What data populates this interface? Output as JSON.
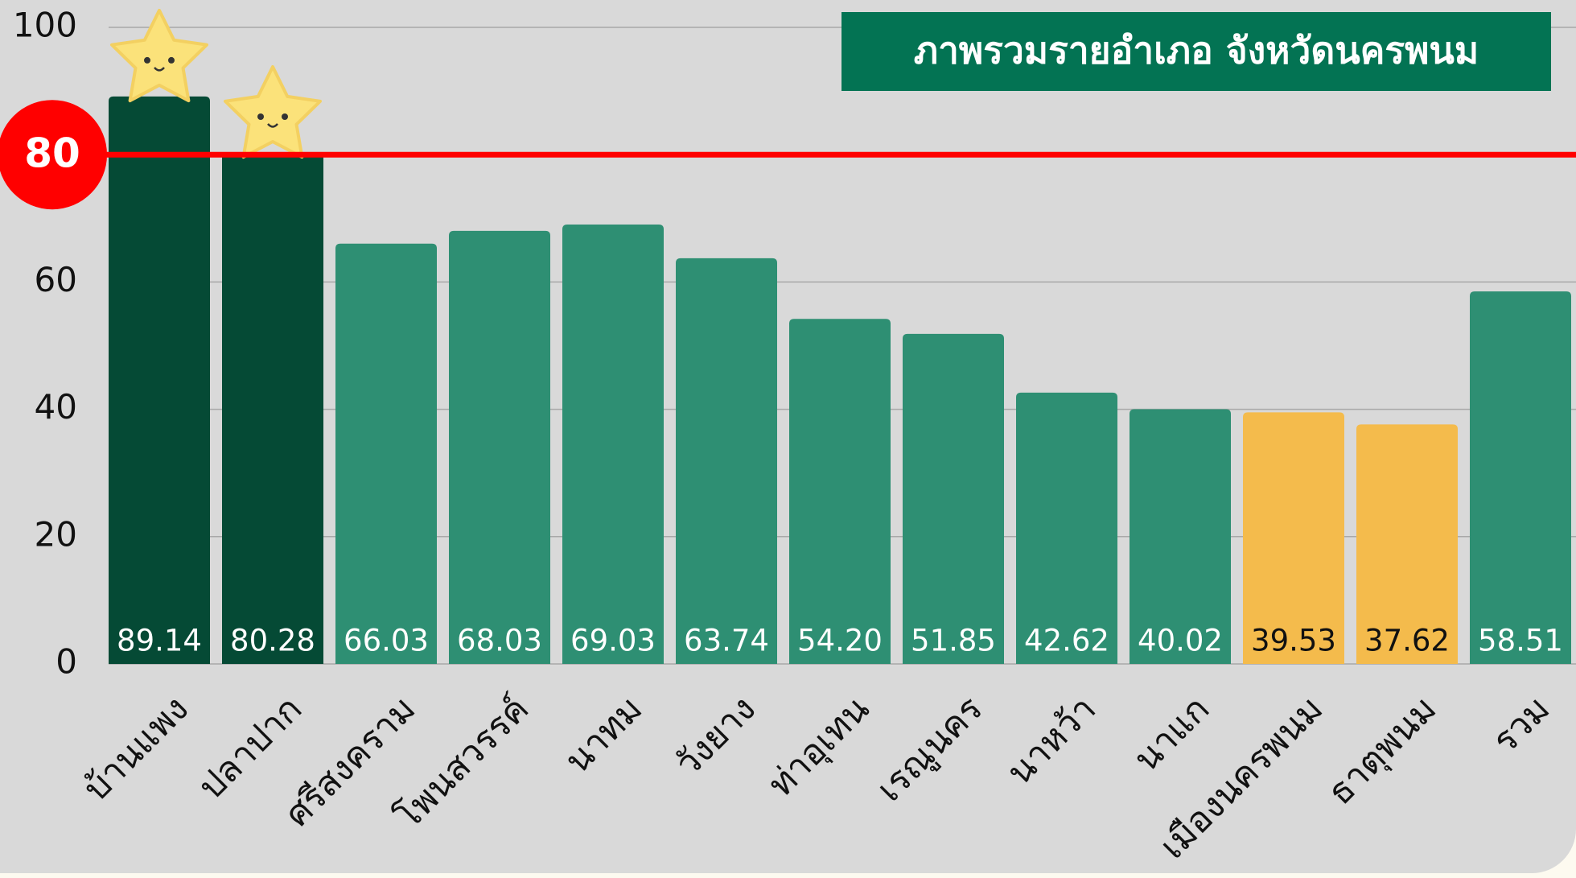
{
  "chart_data": {
    "type": "bar",
    "title": "ภาพรวมรายอำเภอ จังหวัดนครพนม",
    "categories": [
      "บ้านแพง",
      "ปลาปาก",
      "ศรีสงคราม",
      "โพนสวรรค์",
      "นาทม",
      "วังยาง",
      "ท่าอุเทน",
      "เรณูนคร",
      "นาหว้า",
      "นาแก",
      "เมืองนครพนม",
      "ธาตุพนม",
      "รวม"
    ],
    "values": [
      89.14,
      80.28,
      66.03,
      68.03,
      69.03,
      63.74,
      54.2,
      51.85,
      42.62,
      40.02,
      39.53,
      37.62,
      58.51
    ],
    "value_labels": [
      "89.14",
      "80.28",
      "66.03",
      "68.03",
      "69.03",
      "63.74",
      "54.20",
      "51.85",
      "42.62",
      "40.02",
      "39.53",
      "37.62",
      "58.51"
    ],
    "colors": [
      "#054a35",
      "#054a35",
      "#2e8f73",
      "#2e8f73",
      "#2e8f73",
      "#2e8f73",
      "#2e8f73",
      "#2e8f73",
      "#2e8f73",
      "#2e8f73",
      "#f4bb4c",
      "#f4bb4c",
      "#2e8f73"
    ],
    "value_label_colors": [
      "#ffffff",
      "#ffffff",
      "#ffffff",
      "#ffffff",
      "#ffffff",
      "#ffffff",
      "#ffffff",
      "#ffffff",
      "#ffffff",
      "#ffffff",
      "#111111",
      "#111111",
      "#ffffff"
    ],
    "reference_line": {
      "value": 80,
      "color": "#ff0000"
    },
    "ylim": [
      0,
      100
    ],
    "yticks": [
      0,
      20,
      40,
      60,
      80,
      100
    ],
    "grid": true
  }
}
